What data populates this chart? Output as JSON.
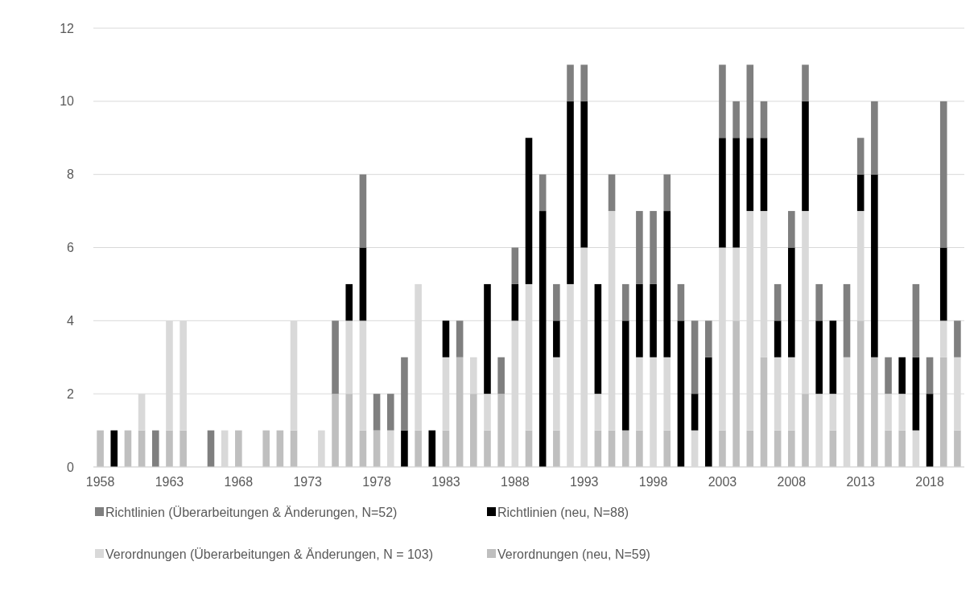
{
  "chart_data": {
    "type": "bar",
    "stacked": true,
    "categories": [
      "1958",
      null,
      null,
      null,
      null,
      "1963",
      null,
      null,
      null,
      null,
      "1968",
      null,
      null,
      null,
      null,
      "1973",
      null,
      null,
      null,
      null,
      "1978",
      null,
      null,
      null,
      null,
      "1983",
      null,
      null,
      null,
      null,
      "1988",
      null,
      null,
      null,
      null,
      "1993",
      null,
      null,
      null,
      null,
      "1998",
      null,
      null,
      null,
      null,
      "2003",
      null,
      null,
      null,
      null,
      "2008",
      null,
      null,
      null,
      null,
      "2013",
      null,
      null,
      null,
      null,
      "2018",
      null,
      null
    ],
    "series": [
      {
        "name": "Verordnungen (neu, N=59)",
        "color": "#bfbfbf",
        "values": [
          1,
          0,
          1,
          1,
          0,
          1,
          1,
          0,
          0,
          0,
          1,
          0,
          1,
          1,
          1,
          0,
          0,
          2,
          2,
          1,
          1,
          0,
          0,
          1,
          0,
          1,
          3,
          2,
          1,
          2,
          0,
          1,
          0,
          1,
          0,
          0,
          1,
          1,
          1,
          1,
          0,
          1,
          0,
          0,
          0,
          1,
          4,
          1,
          3,
          1,
          1,
          2,
          0,
          1,
          0,
          4,
          3,
          1,
          1,
          0,
          0,
          3,
          1
        ]
      },
      {
        "name": "Verordnungen (Überarbeitungen & Änderungen, N = 103)",
        "color": "#d9d9d9",
        "values": [
          0,
          0,
          0,
          1,
          0,
          3,
          3,
          0,
          0,
          1,
          0,
          0,
          0,
          0,
          3,
          0,
          1,
          0,
          2,
          3,
          0,
          1,
          0,
          4,
          0,
          2,
          0,
          1,
          1,
          0,
          4,
          4,
          0,
          2,
          5,
          6,
          1,
          6,
          0,
          2,
          3,
          2,
          0,
          1,
          0,
          5,
          2,
          6,
          4,
          2,
          2,
          5,
          2,
          1,
          3,
          3,
          0,
          1,
          1,
          1,
          0,
          1,
          2
        ]
      },
      {
        "name": "Richtlinien (neu, N=88)",
        "color": "#000000",
        "values": [
          0,
          1,
          0,
          0,
          0,
          0,
          0,
          0,
          0,
          0,
          0,
          0,
          0,
          0,
          0,
          0,
          0,
          0,
          1,
          2,
          0,
          0,
          1,
          0,
          1,
          1,
          0,
          0,
          3,
          0,
          1,
          4,
          7,
          1,
          5,
          4,
          3,
          0,
          3,
          2,
          2,
          4,
          4,
          1,
          3,
          3,
          3,
          2,
          2,
          1,
          3,
          3,
          2,
          2,
          0,
          1,
          5,
          0,
          1,
          2,
          2,
          2,
          0
        ]
      },
      {
        "name": "Richtlinien (Überarbeitungen & Änderungen, N=52)",
        "color": "#7f7f7f",
        "values": [
          0,
          0,
          0,
          0,
          1,
          0,
          0,
          0,
          1,
          0,
          0,
          0,
          0,
          0,
          0,
          0,
          0,
          2,
          0,
          2,
          1,
          1,
          2,
          0,
          0,
          0,
          1,
          0,
          0,
          1,
          1,
          0,
          1,
          1,
          1,
          1,
          0,
          1,
          1,
          2,
          2,
          1,
          1,
          2,
          1,
          2,
          1,
          2,
          1,
          1,
          1,
          1,
          1,
          0,
          2,
          1,
          2,
          1,
          0,
          2,
          1,
          4,
          1
        ]
      }
    ],
    "ylim": [
      0,
      12
    ],
    "yticks": [
      0,
      2,
      4,
      6,
      8,
      10,
      12
    ],
    "grid": "y",
    "legend": "bottom"
  }
}
